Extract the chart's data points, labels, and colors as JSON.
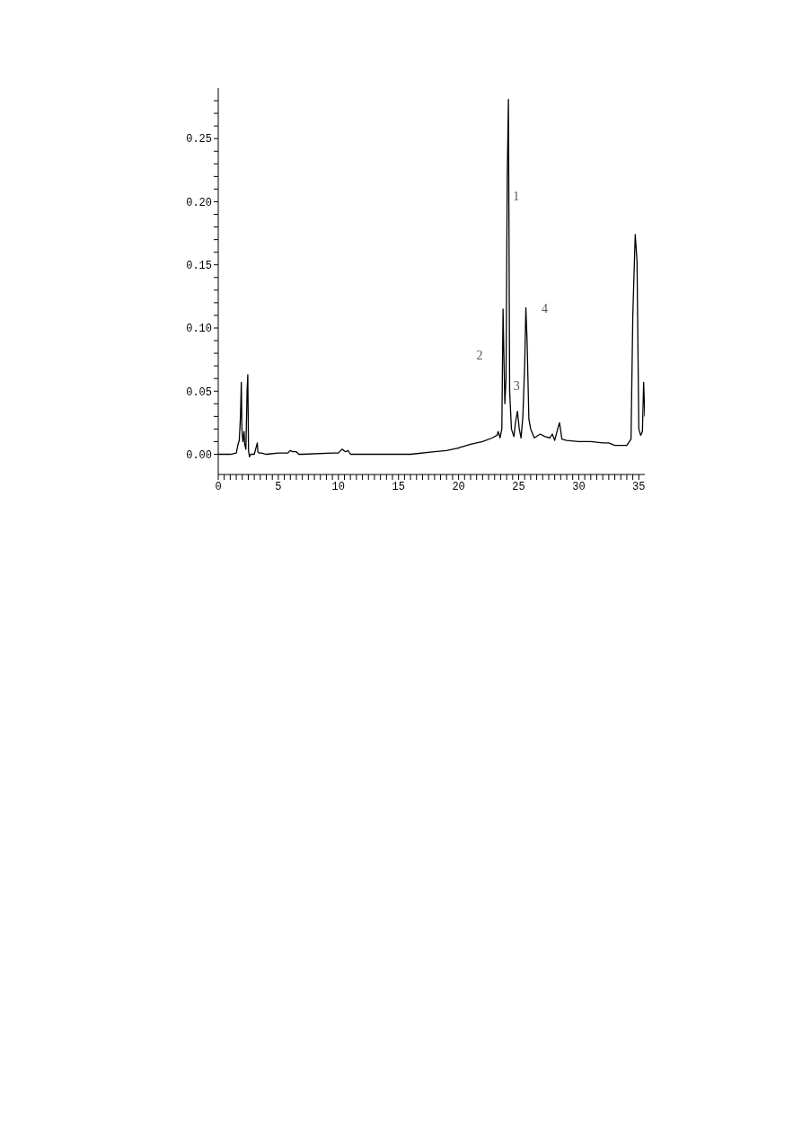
{
  "chart_data": {
    "type": "line",
    "x": [
      0,
      0.5,
      1.0,
      1.5,
      1.65,
      1.75,
      1.85,
      1.92,
      1.97,
      2.05,
      2.15,
      2.2,
      2.3,
      2.4,
      2.46,
      2.52,
      2.6,
      2.7,
      3.0,
      3.25,
      3.3,
      3.4,
      3.6,
      4.0,
      5.0,
      5.8,
      6.0,
      6.2,
      6.5,
      6.7,
      7.0,
      9.5,
      10.0,
      10.3,
      10.6,
      10.8,
      11.0,
      14.0,
      16.0,
      18.0,
      19.0,
      20.0,
      21.0,
      22.0,
      22.8,
      23.2,
      23.3,
      23.45,
      23.6,
      23.7,
      23.85,
      23.95,
      24.05,
      24.15,
      24.25,
      24.4,
      24.6,
      24.75,
      24.9,
      25.05,
      25.2,
      25.35,
      25.5,
      25.6,
      25.7,
      25.85,
      26.0,
      26.3,
      26.8,
      27.2,
      27.6,
      27.8,
      28.0,
      28.3,
      28.4,
      28.6,
      29.0,
      30.0,
      31.0,
      32.0,
      32.5,
      33.0,
      34.0,
      34.35,
      34.5,
      34.7,
      34.85,
      35.0,
      35.15,
      35.3,
      35.4,
      35.5
    ],
    "series": [
      {
        "color": "#000000",
        "values": [
          0,
          0,
          0,
          0.001,
          0.008,
          0.011,
          0.03,
          0.057,
          0.02,
          0.01,
          0.018,
          0.008,
          0.004,
          0.05,
          0.063,
          0.003,
          -0.002,
          0,
          0,
          0.009,
          0.002,
          0.001,
          0.001,
          0,
          0.001,
          0.001,
          0.003,
          0.002,
          0.002,
          0,
          0,
          0.001,
          0.001,
          0.004,
          0.002,
          0.003,
          0,
          0,
          0,
          0.002,
          0.003,
          0.005,
          0.008,
          0.01,
          0.013,
          0.015,
          0.018,
          0.013,
          0.02,
          0.115,
          0.04,
          0.06,
          0.22,
          0.281,
          0.05,
          0.02,
          0.014,
          0.026,
          0.034,
          0.02,
          0.013,
          0.03,
          0.07,
          0.116,
          0.09,
          0.028,
          0.02,
          0.013,
          0.016,
          0.014,
          0.013,
          0.016,
          0.011,
          0.022,
          0.025,
          0.012,
          0.011,
          0.01,
          0.01,
          0.009,
          0.009,
          0.007,
          0.007,
          0.012,
          0.11,
          0.174,
          0.153,
          0.02,
          0.015,
          0.018,
          0.057,
          0.03
        ]
      }
    ],
    "xlim": [
      0,
      35.5
    ],
    "ylim": [
      -0.016,
      0.29
    ],
    "xticks": [
      0,
      {
        "value": 0.5,
        "label": null
      },
      {
        "value": 1,
        "label": null
      },
      {
        "value": 1.5,
        "label": null
      },
      {
        "value": 2,
        "label": null
      },
      {
        "value": 2.5,
        "label": null
      },
      {
        "value": 3,
        "label": null
      },
      {
        "value": 3.5,
        "label": null
      },
      {
        "value": 4,
        "label": null
      },
      {
        "value": 4.5,
        "label": null
      },
      5,
      {
        "value": 5.5,
        "label": null
      },
      {
        "value": 6,
        "label": null
      },
      {
        "value": 6.5,
        "label": null
      },
      {
        "value": 7,
        "label": null
      },
      {
        "value": 7.5,
        "label": null
      },
      {
        "value": 8,
        "label": null
      },
      {
        "value": 8.5,
        "label": null
      },
      {
        "value": 9,
        "label": null
      },
      {
        "value": 9.5,
        "label": null
      },
      10,
      {
        "value": 10.5,
        "label": null
      },
      {
        "value": 11,
        "label": null
      },
      {
        "value": 11.5,
        "label": null
      },
      {
        "value": 12,
        "label": null
      },
      {
        "value": 12.5,
        "label": null
      },
      {
        "value": 13,
        "label": null
      },
      {
        "value": 13.5,
        "label": null
      },
      {
        "value": 14,
        "label": null
      },
      {
        "value": 14.5,
        "label": null
      },
      15,
      {
        "value": 15.5,
        "label": null
      },
      {
        "value": 16,
        "label": null
      },
      {
        "value": 16.5,
        "label": null
      },
      {
        "value": 17,
        "label": null
      },
      {
        "value": 17.5,
        "label": null
      },
      {
        "value": 18,
        "label": null
      },
      {
        "value": 18.5,
        "label": null
      },
      {
        "value": 19,
        "label": null
      },
      {
        "value": 19.5,
        "label": null
      },
      20,
      {
        "value": 20.5,
        "label": null
      },
      {
        "value": 21,
        "label": null
      },
      {
        "value": 21.5,
        "label": null
      },
      {
        "value": 22,
        "label": null
      },
      {
        "value": 22.5,
        "label": null
      },
      {
        "value": 23,
        "label": null
      },
      {
        "value": 23.5,
        "label": null
      },
      {
        "value": 24,
        "label": null
      },
      {
        "value": 24.5,
        "label": null
      },
      25,
      {
        "value": 25.5,
        "label": null
      },
      {
        "value": 26,
        "label": null
      },
      {
        "value": 26.5,
        "label": null
      },
      {
        "value": 27,
        "label": null
      },
      {
        "value": 27.5,
        "label": null
      },
      {
        "value": 28,
        "label": null
      },
      {
        "value": 28.5,
        "label": null
      },
      {
        "value": 29,
        "label": null
      },
      {
        "value": 29.5,
        "label": null
      },
      30,
      {
        "value": 30.5,
        "label": null
      },
      {
        "value": 31,
        "label": null
      },
      {
        "value": 31.5,
        "label": null
      },
      {
        "value": 32,
        "label": null
      },
      {
        "value": 32.5,
        "label": null
      },
      {
        "value": 33,
        "label": null
      },
      {
        "value": 33.5,
        "label": null
      },
      {
        "value": 34,
        "label": null
      },
      {
        "value": 34.5,
        "label": null
      },
      35
    ],
    "yticks": [
      {
        "value": 0,
        "label": "0.00"
      },
      {
        "value": 0.01,
        "label": null
      },
      {
        "value": 0.02,
        "label": null
      },
      {
        "value": 0.03,
        "label": null
      },
      {
        "value": 0.04,
        "label": null
      },
      {
        "value": 0.05,
        "label": "0.05"
      },
      {
        "value": 0.06,
        "label": null
      },
      {
        "value": 0.07,
        "label": null
      },
      {
        "value": 0.08,
        "label": null
      },
      {
        "value": 0.09,
        "label": null
      },
      {
        "value": 0.1,
        "label": "0.10"
      },
      {
        "value": 0.11,
        "label": null
      },
      {
        "value": 0.12,
        "label": null
      },
      {
        "value": 0.13,
        "label": null
      },
      {
        "value": 0.14,
        "label": null
      },
      {
        "value": 0.15,
        "label": "0.15"
      },
      {
        "value": 0.16,
        "label": null
      },
      {
        "value": 0.17,
        "label": null
      },
      {
        "value": 0.18,
        "label": null
      },
      {
        "value": 0.19,
        "label": null
      },
      {
        "value": 0.2,
        "label": "0.20"
      },
      {
        "value": 0.21,
        "label": null
      },
      {
        "value": 0.22,
        "label": null
      },
      {
        "value": 0.23,
        "label": null
      },
      {
        "value": 0.24,
        "label": null
      },
      {
        "value": 0.25,
        "label": "0.25"
      },
      {
        "value": 0.26,
        "label": null
      },
      {
        "value": 0.27,
        "label": null
      },
      {
        "value": 0.28,
        "label": null
      }
    ],
    "annotations": [
      {
        "text": "1",
        "x": 24.05,
        "y": 0.22
      },
      "2",
      {
        "text": "3",
        "x": 24.9,
        "y": 0.034
      },
      {
        "text": "4",
        "x": 25.6,
        "y": 0.116
      }
    ],
    "grid": false,
    "legend": false,
    "marker": "none",
    "line_style": "solid"
  }
}
